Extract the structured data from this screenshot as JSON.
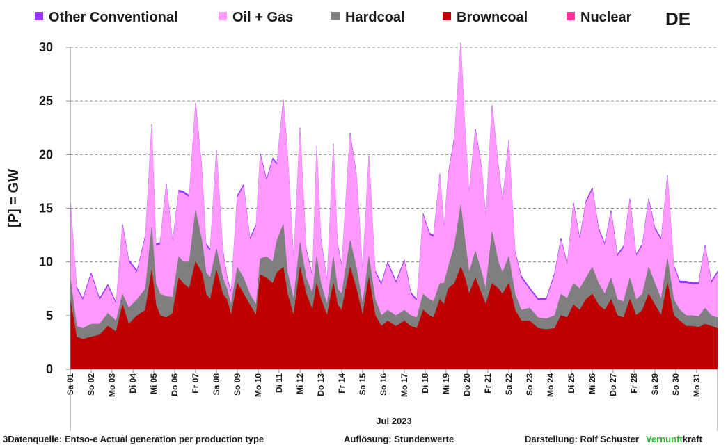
{
  "chart_data": {
    "type": "area",
    "stacked": true,
    "country_label": "DE",
    "ylabel": "[P] =  GW",
    "ylim": [
      0,
      30
    ],
    "yticks": [
      0,
      5,
      10,
      15,
      20,
      25,
      30
    ],
    "grid": "horizontal-dashed",
    "legend_position": "top",
    "x_axis_title": "Jul 2023",
    "day_labels": [
      "Sa 01",
      "So 02",
      "Mo 03",
      "Di 04",
      "Mi 05",
      "Do 06",
      "Fr 07",
      "Sa 08",
      "So 09",
      "Mo 10",
      "Di 11",
      "Mi 12",
      "Do 13",
      "Fr 14",
      "Sa 15",
      "So 16",
      "Mo 17",
      "Di 18",
      "Mi 19",
      "Do 20",
      "Fr 21",
      "Sa 22",
      "So 23",
      "Mo 24",
      "Di 25",
      "Mi 26",
      "Do 27",
      "Fr 28",
      "Sa 29",
      "So 30",
      "Mo 31"
    ],
    "x_days": [
      0,
      0.3,
      0.6,
      1,
      1.4,
      1.8,
      2.2,
      2.5,
      2.8,
      3.2,
      3.6,
      3.9,
      4.1,
      4.3,
      4.6,
      4.9,
      5.2,
      5.4,
      5.7,
      6.0,
      6.3,
      6.5,
      6.7,
      7.0,
      7.3,
      7.5,
      7.7,
      8.0,
      8.3,
      8.6,
      8.9,
      9.1,
      9.4,
      9.7,
      9.9,
      10.2,
      10.4,
      10.7,
      11.0,
      11.3,
      11.6,
      11.8,
      12.0,
      12.3,
      12.6,
      12.8,
      13.0,
      13.4,
      13.7,
      14.0,
      14.3,
      14.6,
      14.9,
      15.2,
      15.6,
      16.0,
      16.3,
      16.6,
      16.9,
      17.2,
      17.4,
      17.7,
      17.9,
      18.1,
      18.4,
      18.7,
      18.9,
      19.1,
      19.4,
      19.7,
      19.9,
      20.2,
      20.5,
      20.7,
      21.0,
      21.3,
      21.6,
      22.0,
      22.4,
      22.8,
      23.2,
      23.5,
      23.8,
      24.1,
      24.4,
      24.7,
      25.0,
      25.3,
      25.6,
      25.9,
      26.2,
      26.5,
      26.8,
      27.1,
      27.4,
      27.7,
      28.0,
      28.3,
      28.6,
      28.9,
      29.2,
      29.5,
      29.8,
      30.1,
      30.4,
      30.7,
      30.99
    ],
    "series": [
      {
        "name": "Browncoal",
        "color": "#c00000",
        "values": [
          6.5,
          3.0,
          2.8,
          3.0,
          3.2,
          4.0,
          3.5,
          6.0,
          4.2,
          5.0,
          5.5,
          9.2,
          6.0,
          5.0,
          4.8,
          5.2,
          8.5,
          8.0,
          7.5,
          10.0,
          9.0,
          7.0,
          6.5,
          9.2,
          7.0,
          6.5,
          5.0,
          8.0,
          7.0,
          6.0,
          5.0,
          8.8,
          8.5,
          8.0,
          9.0,
          9.5,
          7.0,
          5.0,
          9.5,
          7.0,
          5.5,
          8.0,
          6.5,
          5.0,
          8.0,
          6.0,
          5.5,
          9.5,
          7.5,
          5.0,
          8.5,
          5.0,
          4.0,
          4.5,
          4.0,
          4.5,
          4.0,
          3.8,
          5.5,
          5.0,
          4.8,
          6.5,
          6.0,
          7.5,
          8.0,
          9.5,
          8.5,
          7.0,
          8.5,
          7.0,
          6.0,
          8.0,
          7.5,
          7.0,
          8.0,
          5.5,
          4.5,
          4.5,
          3.8,
          3.7,
          3.8,
          5.0,
          4.8,
          6.0,
          5.5,
          6.5,
          7.0,
          6.0,
          5.5,
          6.5,
          5.0,
          4.8,
          6.5,
          5.0,
          5.5,
          7.0,
          6.0,
          5.0,
          8.0,
          5.0,
          4.5,
          4.0,
          4.0,
          3.9,
          4.2,
          4.0,
          3.8
        ]
      },
      {
        "name": "Hardcoal",
        "color": "#7f7f7f",
        "values": [
          2.0,
          1.0,
          1.0,
          1.2,
          1.0,
          1.2,
          1.0,
          1.0,
          1.5,
          1.5,
          2.0,
          4.0,
          2.0,
          2.0,
          2.0,
          1.5,
          2.0,
          2.0,
          2.5,
          4.8,
          3.0,
          2.0,
          2.0,
          2.0,
          1.5,
          1.0,
          1.0,
          1.5,
          1.5,
          1.0,
          1.0,
          1.5,
          2.0,
          2.0,
          3.0,
          4.0,
          2.0,
          1.5,
          2.3,
          1.5,
          1.5,
          2.5,
          1.5,
          1.0,
          2.5,
          1.5,
          1.5,
          2.5,
          2.0,
          1.0,
          2.0,
          1.5,
          1.0,
          1.0,
          1.0,
          1.0,
          1.0,
          1.0,
          1.5,
          1.5,
          1.5,
          1.5,
          2.0,
          2.0,
          3.5,
          5.8,
          3.5,
          2.0,
          2.5,
          2.0,
          1.5,
          4.8,
          2.5,
          2.0,
          2.5,
          1.5,
          1.0,
          1.2,
          1.0,
          1.0,
          1.2,
          2.0,
          1.8,
          2.0,
          2.0,
          2.0,
          2.5,
          2.0,
          1.5,
          2.0,
          1.5,
          1.5,
          2.0,
          1.5,
          1.5,
          2.5,
          2.0,
          1.5,
          2.3,
          1.5,
          1.0,
          1.0,
          1.0,
          1.0,
          1.5,
          1.0,
          1.0
        ]
      },
      {
        "name": "Oil + Gas",
        "color": "#ff99ff",
        "values": [
          7.0,
          3.5,
          2.6,
          4.6,
          2.2,
          2.5,
          1.5,
          6.3,
          4.3,
          2.5,
          4.8,
          9.4,
          3.5,
          4.6,
          10.3,
          5.0,
          6.0,
          6.4,
          6.0,
          9.8,
          6.5,
          2.5,
          2.5,
          9.0,
          2.5,
          1.0,
          1.0,
          6.5,
          8.5,
          5.0,
          7.3,
          9.6,
          7.0,
          9.5,
          7.0,
          11.4,
          11.0,
          3.5,
          10.5,
          2.5,
          1.5,
          10.1,
          4.0,
          2.0,
          10.3,
          4.0,
          2.5,
          9.8,
          8.5,
          3.0,
          9.2,
          2.5,
          2.8,
          4.3,
          3.0,
          4.5,
          2.0,
          1.5,
          7.3,
          6.0,
          6.0,
          10.0,
          5.0,
          8.5,
          10.0,
          14.9,
          10.3,
          7.2,
          11.2,
          9.6,
          6.5,
          11.6,
          8.8,
          6.5,
          10.6,
          3.8,
          3.0,
          1.7,
          1.6,
          1.7,
          3.8,
          5.0,
          3.0,
          7.3,
          4.5,
          7.0,
          7.2,
          5.0,
          4.5,
          6.1,
          4.0,
          5.0,
          7.2,
          4.0,
          4.5,
          6.2,
          5.0,
          5.5,
          7.6,
          3.0,
          2.5,
          3.0,
          2.9,
          3.0,
          5.7,
          3.0,
          4.1
        ]
      },
      {
        "name": "Nuclear",
        "color": "#ff3399",
        "values": [
          0,
          0,
          0,
          0,
          0,
          0,
          0,
          0,
          0,
          0,
          0,
          0,
          0,
          0,
          0,
          0,
          0,
          0,
          0,
          0,
          0,
          0,
          0,
          0,
          0,
          0,
          0,
          0,
          0,
          0,
          0,
          0,
          0,
          0,
          0,
          0,
          0,
          0,
          0,
          0,
          0,
          0,
          0,
          0,
          0,
          0,
          0,
          0,
          0,
          0,
          0,
          0,
          0,
          0,
          0,
          0,
          0,
          0,
          0,
          0,
          0,
          0,
          0,
          0,
          0,
          0,
          0,
          0,
          0,
          0,
          0,
          0,
          0,
          0,
          0,
          0,
          0,
          0,
          0,
          0,
          0,
          0,
          0,
          0,
          0,
          0,
          0,
          0,
          0,
          0,
          0,
          0,
          0,
          0,
          0,
          0,
          0,
          0,
          0,
          0,
          0,
          0,
          0,
          0,
          0,
          0,
          0
        ]
      },
      {
        "name": "Other Conventional",
        "color": "#9933ff",
        "values": [
          0.2,
          0.2,
          0.2,
          0.2,
          0.2,
          0.2,
          0.2,
          0.2,
          0.2,
          0.2,
          0.2,
          0.2,
          0.2,
          0.2,
          0.2,
          0.2,
          0.2,
          0.2,
          0.2,
          0.2,
          0.2,
          0.2,
          0.2,
          0.2,
          0.2,
          0.2,
          0.2,
          0.2,
          0.2,
          0.2,
          0.2,
          0.2,
          0.2,
          0.2,
          0.2,
          0.2,
          0.2,
          0.2,
          0.2,
          0.2,
          0.2,
          0.2,
          0.2,
          0.2,
          0.2,
          0.2,
          0.2,
          0.2,
          0.2,
          0.2,
          0.2,
          0.2,
          0.2,
          0.2,
          0.2,
          0.2,
          0.2,
          0.2,
          0.2,
          0.2,
          0.2,
          0.2,
          0.2,
          0.2,
          0.2,
          0.2,
          0.2,
          0.2,
          0.2,
          0.2,
          0.2,
          0.2,
          0.2,
          0.2,
          0.2,
          0.2,
          0.2,
          0.2,
          0.2,
          0.2,
          0.2,
          0.2,
          0.2,
          0.2,
          0.2,
          0.2,
          0.2,
          0.2,
          0.2,
          0.2,
          0.2,
          0.2,
          0.2,
          0.2,
          0.2,
          0.2,
          0.2,
          0.2,
          0.2,
          0.2,
          0.2,
          0.2,
          0.2,
          0.2,
          0.2,
          0.2,
          0.2
        ]
      }
    ],
    "legend_order": [
      "Other Conventional",
      "Oil + Gas",
      "Hardcoal",
      "Browncoal",
      "Nuclear"
    ]
  },
  "footer": {
    "source": "3Datenquelle: Entso-e  Actual generation per production type",
    "resolution": "Auflösung: Stundenwerte",
    "author": "Darstellung:  Rolf Schuster",
    "brand_green": "Vernunft",
    "brand_black": "kraft",
    "brand_color": "#2db82d"
  }
}
